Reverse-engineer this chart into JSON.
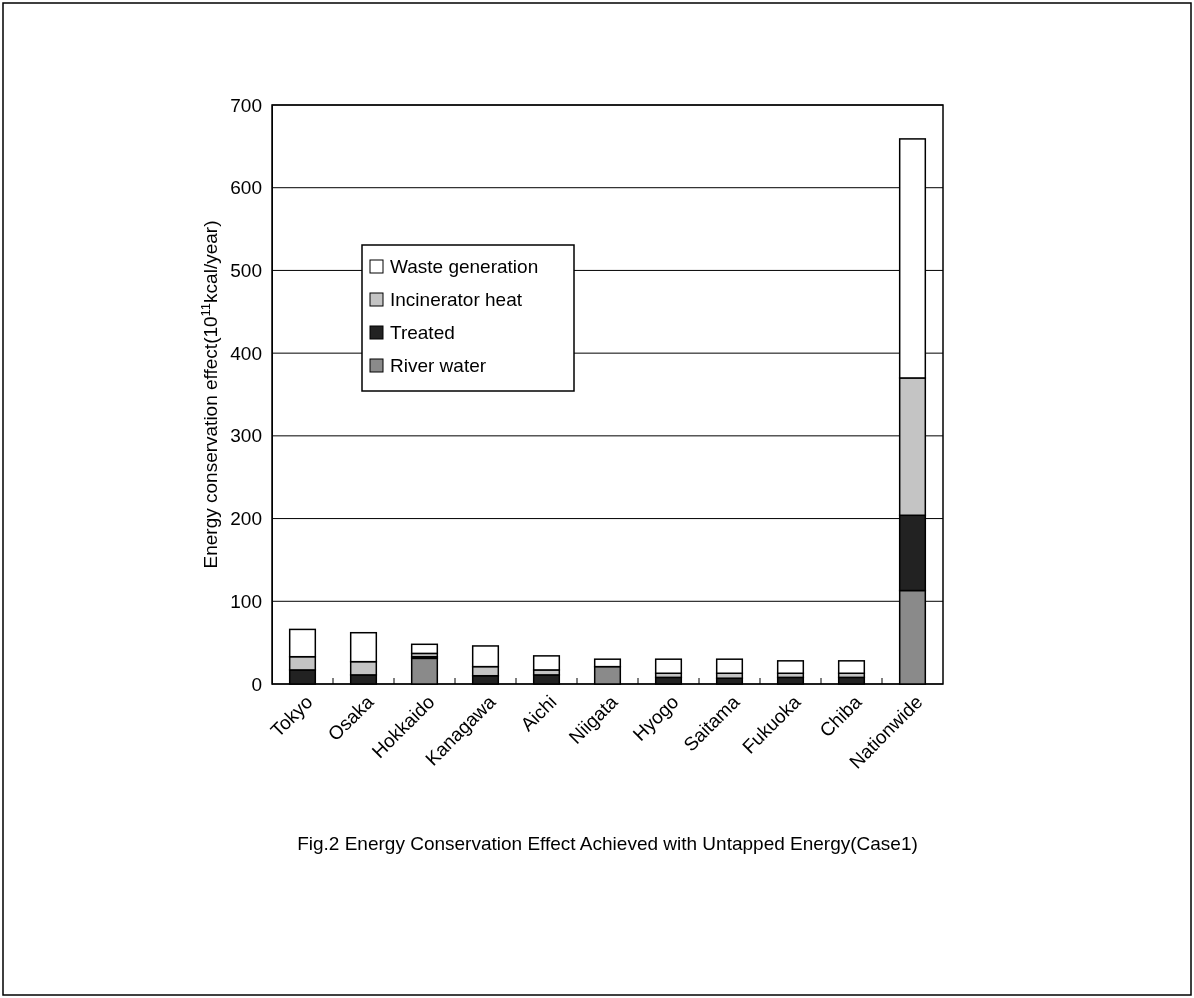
{
  "chart_data": {
    "type": "bar",
    "stacked": true,
    "categories": [
      "Tokyo",
      "Osaka",
      "Hokkaido",
      "Kanagawa",
      "Aichi",
      "Niigata",
      "Hyogo",
      "Saitama",
      "Fukuoka",
      "Chiba",
      "Nationwide"
    ],
    "series": [
      {
        "name": "River water",
        "color": "#8a8a8a",
        "values": [
          0,
          0,
          31,
          0,
          0,
          21,
          0,
          0,
          0,
          0,
          113
        ]
      },
      {
        "name": "Treated",
        "color": "#222222",
        "values": [
          17,
          11,
          2,
          10,
          11,
          0,
          8,
          7,
          8,
          8,
          91
        ]
      },
      {
        "name": "Incinerator heat",
        "color": "#c4c4c4",
        "values": [
          16,
          16,
          4,
          11,
          6,
          null,
          5,
          6,
          5,
          5,
          166
        ]
      },
      {
        "name": "Waste generation",
        "color": "#ffffff",
        "values": [
          33,
          35,
          11,
          25,
          17,
          9,
          17,
          17,
          15,
          15,
          289
        ]
      }
    ],
    "ylabel": "Energy conservation effect(10$^{11}$kcal/year)",
    "ylim": [
      0,
      700
    ],
    "yticks": [
      0,
      100,
      200,
      300,
      400,
      500,
      600,
      700
    ],
    "grid": "y",
    "legend": "top left",
    "annotations": [
      "Fig.2 Energy Conservation Effect Achieved with Untapped Energy(Case1)"
    ]
  }
}
